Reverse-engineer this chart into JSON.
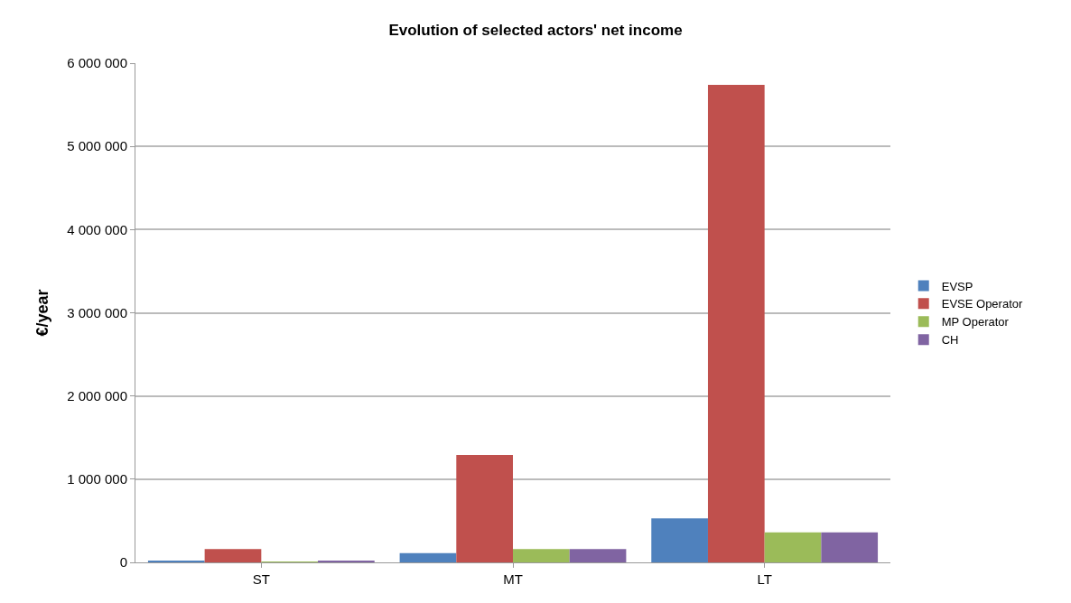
{
  "chart_data": {
    "type": "bar",
    "title": "Evolution of selected actors' net income",
    "ylabel": "€/year",
    "categories": [
      "ST",
      "MT",
      "LT"
    ],
    "series": [
      {
        "name": "EVSP",
        "color": "#4f81bd",
        "values": [
          20000,
          110000,
          530000
        ]
      },
      {
        "name": "EVSE Operator",
        "color": "#c0504d",
        "values": [
          160000,
          1290000,
          5740000
        ]
      },
      {
        "name": "MP Operator",
        "color": "#9bbb59",
        "values": [
          10000,
          160000,
          360000
        ]
      },
      {
        "name": "CH",
        "color": "#8064a2",
        "values": [
          20000,
          160000,
          360000
        ]
      }
    ],
    "ylim": [
      0,
      6000000
    ],
    "yticks": [
      0,
      {
        "value": 1000000,
        "label": "1 000 000"
      },
      {
        "value": 2000000,
        "label": "2 000 000"
      },
      {
        "value": 3000000,
        "label": "3 000 000"
      },
      {
        "value": 4000000,
        "label": "4 000 000"
      },
      {
        "value": 5000000,
        "label": "5 000 000"
      },
      {
        "value": 6000000,
        "label": "6 000 000"
      }
    ],
    "grid": "y",
    "legend": "right"
  }
}
